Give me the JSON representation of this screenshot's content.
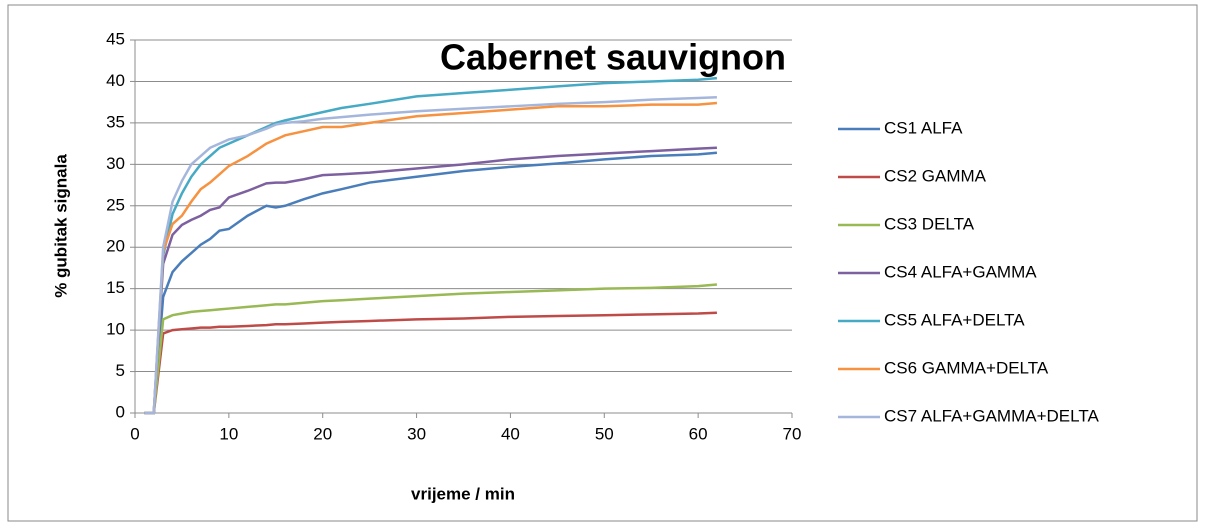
{
  "chart_data": {
    "type": "line",
    "title": "Cabernet sauvignon",
    "x_label": "vrijeme / min",
    "y_label": "% gubitak signala",
    "x": [
      1,
      2,
      3,
      4,
      5,
      6,
      7,
      8,
      9,
      10,
      12,
      14,
      15,
      16,
      18,
      20,
      22,
      25,
      30,
      35,
      40,
      45,
      50,
      55,
      60,
      62
    ],
    "series": [
      {
        "name": "CS1 ALFA",
        "color": "#4a7ebb",
        "values": [
          0,
          0,
          14,
          17,
          18.3,
          19.3,
          20.3,
          21,
          22,
          22.2,
          23.8,
          25,
          24.8,
          25,
          25.8,
          26.5,
          27,
          27.8,
          28.5,
          29.2,
          29.7,
          30.1,
          30.6,
          31,
          31.2,
          31.4
        ]
      },
      {
        "name": "CS2 GAMMA",
        "color": "#be4b48",
        "values": [
          0,
          0,
          9.6,
          10,
          10.1,
          10.2,
          10.3,
          10.3,
          10.4,
          10.4,
          10.5,
          10.6,
          10.7,
          10.7,
          10.8,
          10.9,
          11,
          11.1,
          11.3,
          11.4,
          11.6,
          11.7,
          11.8,
          11.9,
          12,
          12.1
        ]
      },
      {
        "name": "CS3 DELTA",
        "color": "#98b954",
        "values": [
          0,
          0,
          11.3,
          11.8,
          12,
          12.2,
          12.3,
          12.4,
          12.5,
          12.6,
          12.8,
          13,
          13.1,
          13.1,
          13.3,
          13.5,
          13.6,
          13.8,
          14.1,
          14.4,
          14.6,
          14.8,
          15,
          15.1,
          15.3,
          15.5
        ]
      },
      {
        "name": "CS4 ALFA+GAMMA",
        "color": "#7d60a0",
        "values": [
          0,
          0,
          18,
          21.5,
          22.7,
          23.3,
          23.8,
          24.5,
          24.8,
          26,
          26.8,
          27.7,
          27.8,
          27.8,
          28.2,
          28.7,
          28.8,
          29,
          29.5,
          30,
          30.6,
          31,
          31.3,
          31.6,
          31.9,
          32
        ]
      },
      {
        "name": "CS5 ALFA+DELTA",
        "color": "#46aac5",
        "values": [
          0,
          0,
          19,
          24,
          26.5,
          28.5,
          30,
          31,
          32,
          32.5,
          33.5,
          34.5,
          35,
          35.3,
          35.8,
          36.3,
          36.8,
          37.3,
          38.2,
          38.6,
          39,
          39.4,
          39.8,
          40,
          40.2,
          40.4
        ]
      },
      {
        "name": "CS6 GAMMA+DELTA",
        "color": "#f69240",
        "values": [
          0,
          0,
          19.5,
          22.8,
          23.8,
          25.5,
          27,
          27.8,
          28.8,
          29.8,
          31,
          32.5,
          33,
          33.5,
          34,
          34.5,
          34.5,
          35,
          35.8,
          36.2,
          36.6,
          37,
          37,
          37.2,
          37.2,
          37.4
        ]
      },
      {
        "name": "CS7 ALFA+GAMMA+DELTA",
        "color": "#a5b6dc",
        "values": [
          0,
          0,
          20,
          25.5,
          28,
          30,
          31,
          32,
          32.5,
          33,
          33.5,
          34.3,
          34.8,
          35,
          35.2,
          35.5,
          35.7,
          36,
          36.4,
          36.7,
          37,
          37.3,
          37.5,
          37.8,
          38,
          38.1
        ]
      }
    ],
    "xlim": [
      0,
      70
    ],
    "xticks": [
      0,
      10,
      20,
      30,
      40,
      50,
      60,
      70
    ],
    "ylim": [
      0,
      45
    ],
    "yticks": [
      0,
      5,
      10,
      15,
      20,
      25,
      30,
      35,
      40,
      45
    ],
    "grid": true,
    "legend": "right"
  }
}
